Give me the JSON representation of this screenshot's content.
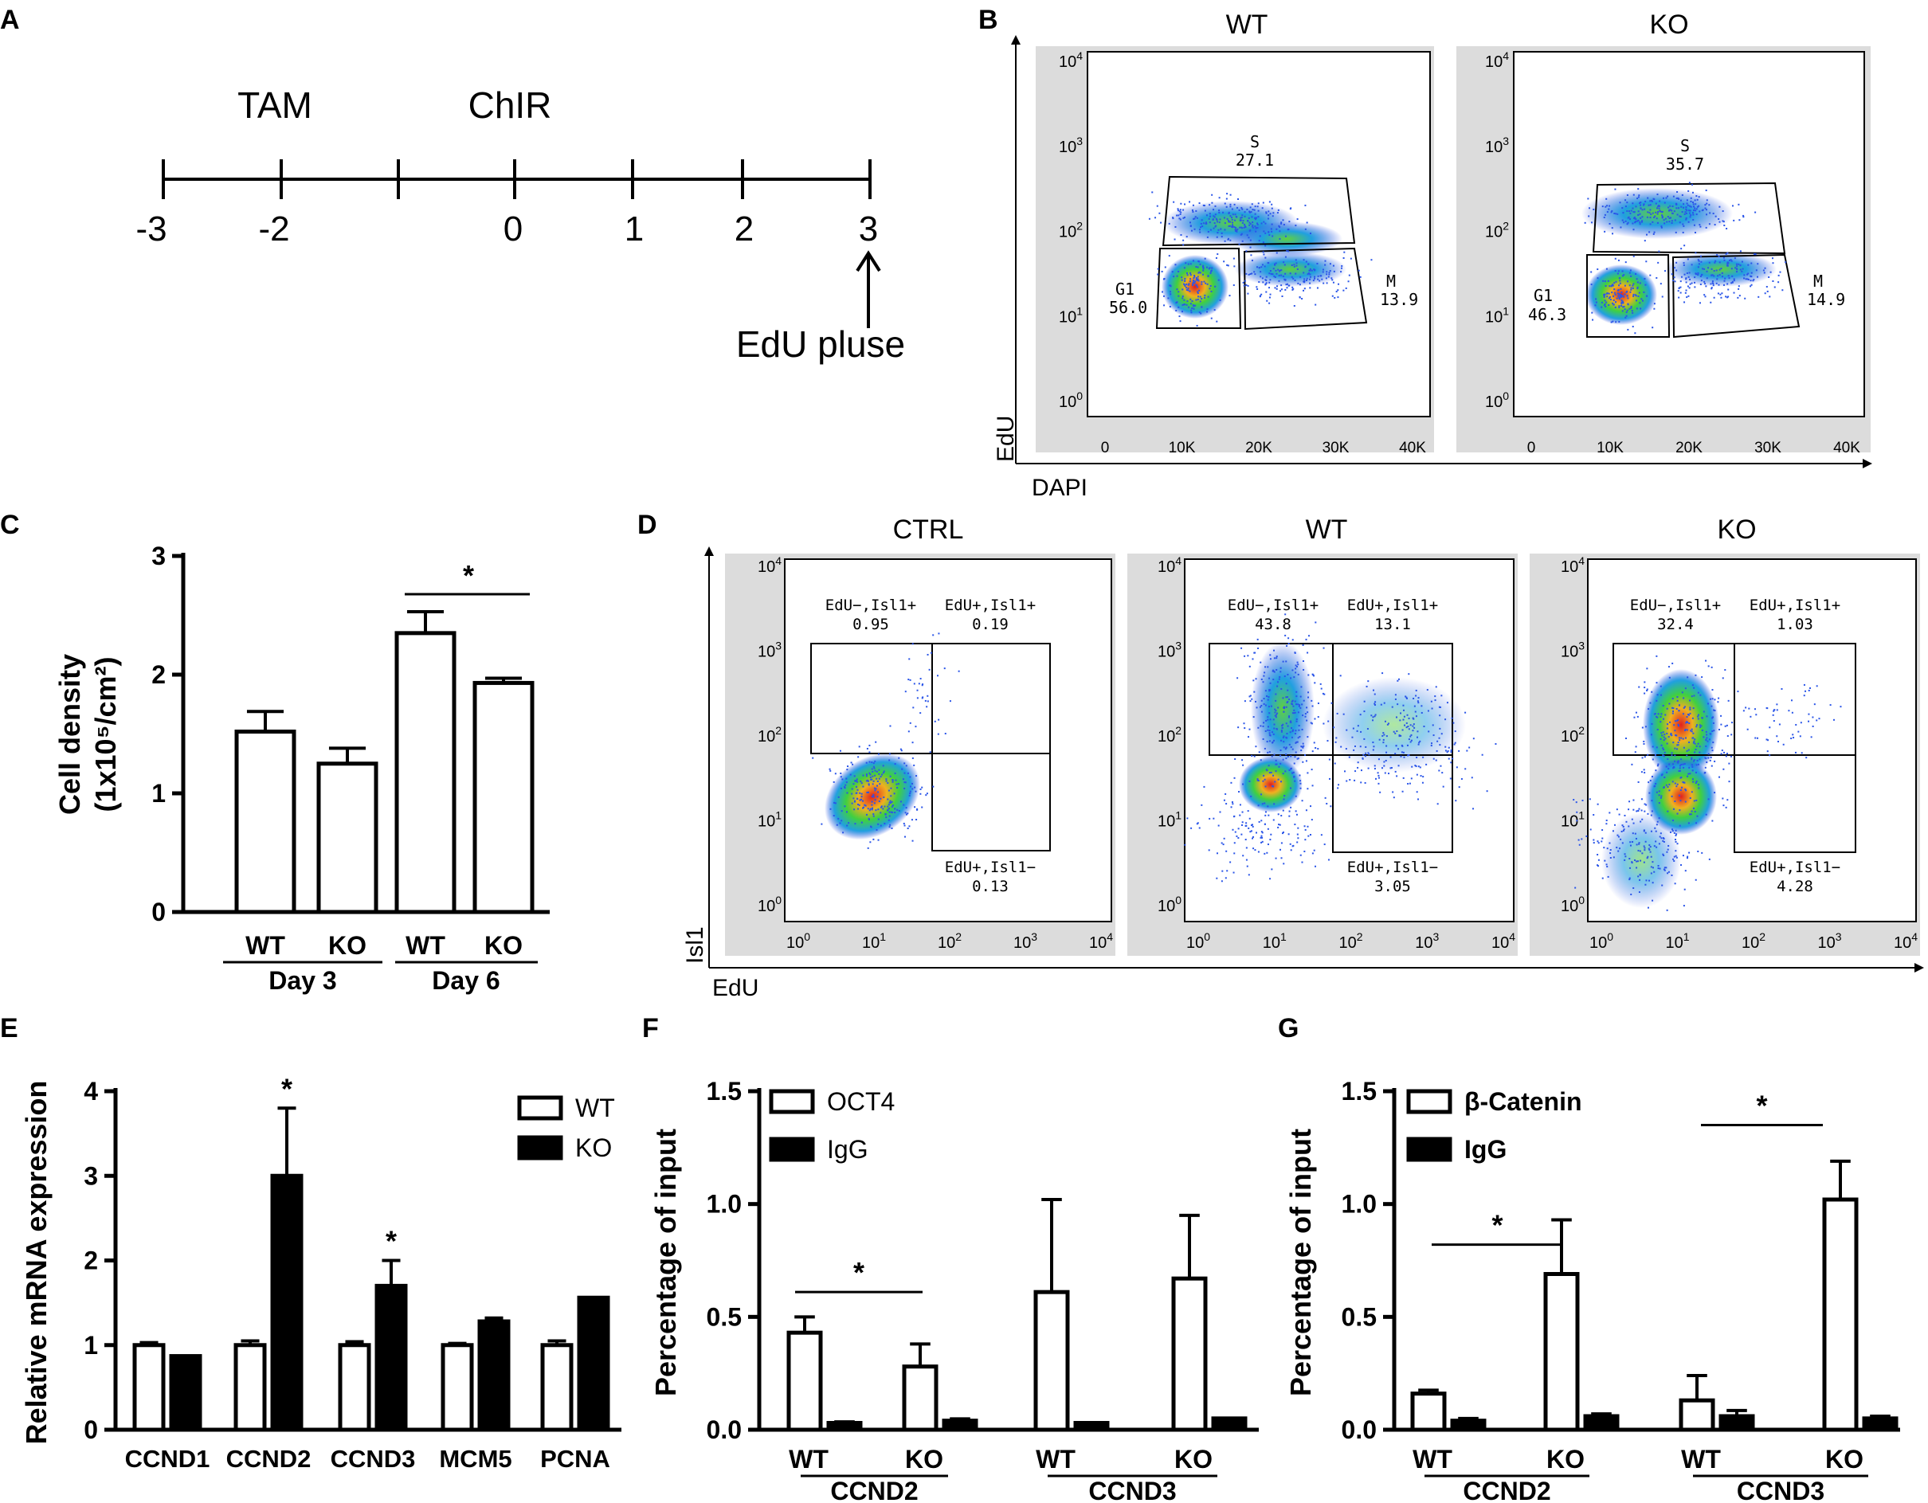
{
  "panel_letters": [
    "A",
    "B",
    "C",
    "D",
    "E",
    "F",
    "G"
  ],
  "panelA": {
    "label_tam": "TAM",
    "label_chir": "ChIR",
    "ticks": [
      "-3",
      "-2",
      "0",
      "1",
      "2",
      "3"
    ],
    "pulse": "EdU pluse"
  },
  "panelB": {
    "xlabel": "DAPI",
    "ylabel": "EdU",
    "y_ticks": [
      "10^0",
      "10^1",
      "10^2",
      "10^3",
      "10^4"
    ],
    "x_ticks": [
      "0",
      "10K",
      "20K",
      "30K",
      "40K"
    ],
    "plots": [
      {
        "title": "WT",
        "gates": {
          "S": "27.1",
          "G1": "56.0",
          "M": "13.9"
        }
      },
      {
        "title": "KO",
        "gates": {
          "S": "35.7",
          "G1": "46.3",
          "M": "14.9"
        }
      }
    ],
    "gate_names": {
      "S": "S",
      "G1": "G1",
      "M": "M"
    }
  },
  "panelD": {
    "xlabel": "EdU",
    "ylabel": "Isl1",
    "ticks": [
      "10^0",
      "10^1",
      "10^2",
      "10^3",
      "10^4"
    ],
    "plots": [
      {
        "title": "CTRL",
        "q1": "EdU−,Isl1+",
        "v1": "0.95",
        "q2": "EdU+,Isl1+",
        "v2": "0.19",
        "q3": "EdU+,Isl1−",
        "v3": "0.13"
      },
      {
        "title": "WT",
        "q1": "EdU−,Isl1+",
        "v1": "43.8",
        "q2": "EdU+,Isl1+",
        "v2": "13.1",
        "q3": "EdU+,Isl1−",
        "v3": "3.05"
      },
      {
        "title": "KO",
        "q1": "EdU−,Isl1+",
        "v1": "32.4",
        "q2": "EdU+,Isl1+",
        "v2": "1.03",
        "q3": "EdU+,Isl1−",
        "v3": "4.28"
      }
    ]
  },
  "chart_data": [
    {
      "panel": "C",
      "type": "bar",
      "ylabel_line1": "Cell density",
      "ylabel_line2": "(1x10⁵/cm²)",
      "y_ticks": [
        "0",
        "1",
        "2",
        "3"
      ],
      "ylim": [
        0,
        3
      ],
      "categories": [
        "WT",
        "KO",
        "WT",
        "KO"
      ],
      "groups": [
        "Day 3",
        "Day 6"
      ],
      "values": [
        1.52,
        1.25,
        2.35,
        1.93
      ],
      "errors": [
        0.17,
        0.13,
        0.18,
        0.04
      ],
      "significance": "*"
    },
    {
      "panel": "E",
      "type": "bar",
      "ylabel": "Relative mRNA expression",
      "y_ticks": [
        "0",
        "1",
        "2",
        "3",
        "4"
      ],
      "ylim": [
        0,
        4
      ],
      "categories": [
        "CCND1",
        "CCND2",
        "CCND3",
        "MCM5",
        "PCNA"
      ],
      "series": [
        {
          "name": "WT",
          "values": [
            1.0,
            1.0,
            1.0,
            1.0,
            1.0
          ],
          "errors": [
            0.03,
            0.05,
            0.04,
            0.02,
            0.05
          ]
        },
        {
          "name": "KO",
          "values": [
            0.87,
            3.0,
            1.7,
            1.28,
            1.56
          ],
          "errors": [
            0,
            0.8,
            0.3,
            0.04,
            0
          ]
        }
      ],
      "significance": [
        "",
        "*",
        "*",
        "",
        ""
      ]
    },
    {
      "panel": "F",
      "type": "bar",
      "ylabel": "Percentage of input",
      "y_ticks": [
        "0.0",
        "0.5",
        "1.0",
        "1.5"
      ],
      "ylim": [
        0,
        1.5
      ],
      "groups": [
        "CCND2",
        "CCND3"
      ],
      "sublabels": [
        "WT",
        "KO",
        "WT",
        "KO"
      ],
      "series": [
        {
          "name": "OCT4",
          "values": [
            0.43,
            0.28,
            0.61,
            0.67
          ],
          "errors": [
            0.07,
            0.1,
            0.41,
            0.28
          ]
        },
        {
          "name": "IgG",
          "values": [
            0.03,
            0.04,
            0.03,
            0.05
          ],
          "errors": [
            0.005,
            0.008,
            0,
            0
          ]
        }
      ],
      "significance": "*"
    },
    {
      "panel": "G",
      "type": "bar",
      "ylabel": "Percentage of input",
      "y_ticks": [
        "0.0",
        "0.5",
        "1.0",
        "1.5"
      ],
      "ylim": [
        0,
        1.5
      ],
      "groups": [
        "CCND2",
        "CCND3"
      ],
      "sublabels": [
        "WT",
        "KO",
        "WT",
        "KO"
      ],
      "series": [
        {
          "name": "β-Catenin",
          "values": [
            0.16,
            0.69,
            0.13,
            1.02
          ],
          "errors": [
            0.015,
            0.24,
            0.11,
            0.17
          ]
        },
        {
          "name": "IgG",
          "values": [
            0.04,
            0.06,
            0.06,
            0.05
          ],
          "errors": [
            0.01,
            0.01,
            0.025,
            0.01
          ]
        }
      ],
      "significance": [
        "*",
        "*"
      ]
    }
  ]
}
